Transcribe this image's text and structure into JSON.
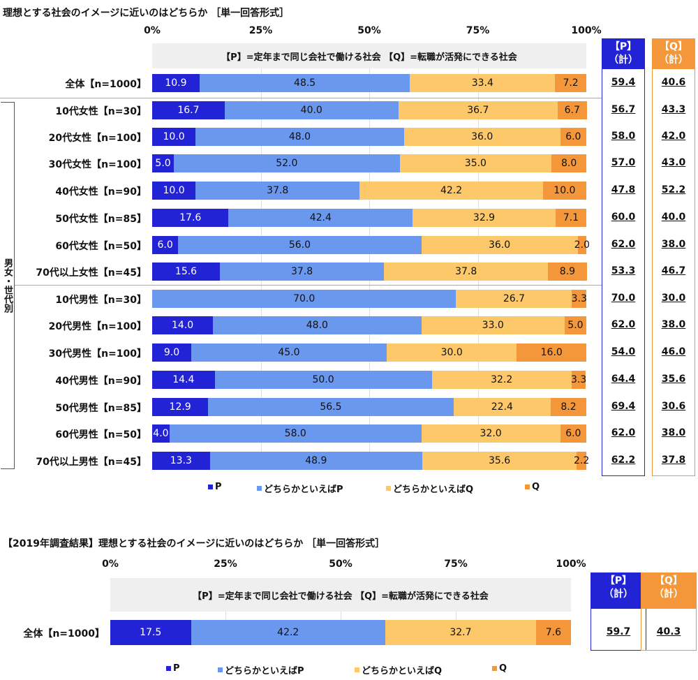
{
  "colors": {
    "P": "#2323d6",
    "leanP": "#6a98ee",
    "leanQ": "#fcc86a",
    "Q": "#f4963a",
    "Pbox": "#2323d6",
    "Qbox": "#f4963a"
  },
  "chart_data": [
    {
      "type": "bar",
      "stacked": true,
      "orientation": "horizontal",
      "title": "理想とする社会のイメージに近いのはどちらか ［単一回答形式］",
      "subtitle": "【P】=定年まで同じ会社で働ける社会 【Q】=転職が活発にできる社会",
      "xticks": [
        "0%",
        "25%",
        "50%",
        "75%",
        "100%"
      ],
      "xlim": [
        0,
        100
      ],
      "group_label": "男女・世代別",
      "legend": [
        "P",
        "どちらかといえばP",
        "どちらかといえばQ",
        "Q"
      ],
      "legend_position": "bottom",
      "total_headers": [
        "【P】（計）",
        "【Q】（計）"
      ],
      "categories": [
        "全体【n=1000】",
        "10代女性【n=30】",
        "20代女性【n=100】",
        "30代女性【n=100】",
        "40代女性【n=90】",
        "50代女性【n=85】",
        "60代女性【n=50】",
        "70代以上女性【n=45】",
        "10代男性【n=30】",
        "20代男性【n=100】",
        "30代男性【n=100】",
        "40代男性【n=90】",
        "50代男性【n=85】",
        "60代男性【n=50】",
        "70代以上男性【n=45】"
      ],
      "series": [
        {
          "name": "P",
          "values": [
            10.9,
            16.7,
            10.0,
            5.0,
            10.0,
            17.6,
            6.0,
            15.6,
            0,
            14.0,
            9.0,
            14.4,
            12.9,
            4.0,
            13.3
          ]
        },
        {
          "name": "どちらかといえばP",
          "values": [
            48.5,
            40.0,
            48.0,
            52.0,
            37.8,
            42.4,
            56.0,
            37.8,
            70.0,
            48.0,
            45.0,
            50.0,
            56.5,
            58.0,
            48.9
          ]
        },
        {
          "name": "どちらかといえばQ",
          "values": [
            33.4,
            36.7,
            36.0,
            35.0,
            42.2,
            32.9,
            36.0,
            37.8,
            26.7,
            33.0,
            30.0,
            32.2,
            22.4,
            32.0,
            35.6
          ]
        },
        {
          "name": "Q",
          "values": [
            7.2,
            6.7,
            6.0,
            8.0,
            10.0,
            7.1,
            2.0,
            8.9,
            3.3,
            5.0,
            16.0,
            3.3,
            8.2,
            6.0,
            2.2
          ]
        }
      ],
      "totals_P": [
        "59.4",
        "56.7",
        "58.0",
        "57.0",
        "47.8",
        "60.0",
        "62.0",
        "53.3",
        "70.0",
        "62.0",
        "54.0",
        "64.4",
        "69.4",
        "62.0",
        "62.2"
      ],
      "totals_Q": [
        "40.6",
        "43.3",
        "42.0",
        "43.0",
        "52.2",
        "40.0",
        "38.0",
        "46.7",
        "30.0",
        "38.0",
        "46.0",
        "35.6",
        "30.6",
        "38.0",
        "37.8"
      ]
    },
    {
      "type": "bar",
      "stacked": true,
      "orientation": "horizontal",
      "title": "【2019年調査結果】理想とする社会のイメージに近いのはどちらか ［単一回答形式］",
      "subtitle": "【P】=定年まで同じ会社で働ける社会 【Q】=転職が活発にできる社会",
      "xticks": [
        "0%",
        "25%",
        "50%",
        "75%",
        "100%"
      ],
      "xlim": [
        0,
        100
      ],
      "legend": [
        "P",
        "どちらかといえばP",
        "どちらかといえばQ",
        "Q"
      ],
      "legend_position": "bottom",
      "total_headers": [
        "【P】（計）",
        "【Q】（計）"
      ],
      "categories": [
        "全体【n=1000】"
      ],
      "series": [
        {
          "name": "P",
          "values": [
            17.5
          ]
        },
        {
          "name": "どちらかといえばP",
          "values": [
            42.2
          ]
        },
        {
          "name": "どちらかといえばQ",
          "values": [
            32.7
          ]
        },
        {
          "name": "Q",
          "values": [
            7.6
          ]
        }
      ],
      "totals_P": [
        "59.7"
      ],
      "totals_Q": [
        "40.3"
      ]
    }
  ]
}
